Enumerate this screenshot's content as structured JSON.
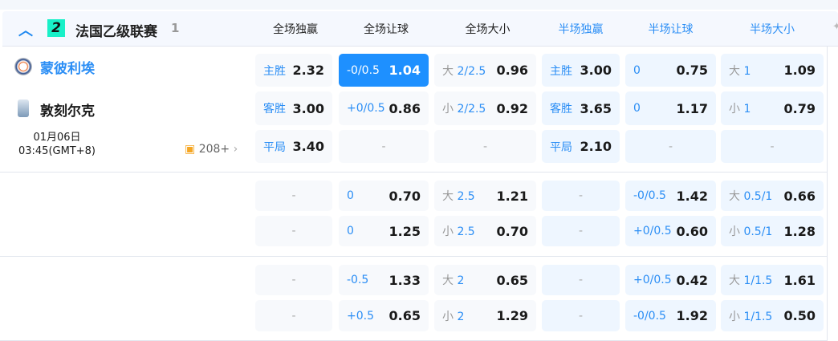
{
  "league": {
    "name": "法国乙级联赛",
    "count": "1",
    "logo_text": "2"
  },
  "columns": [
    "全场独赢",
    "全场让球",
    "全场大小",
    "半场独赢",
    "半场让球",
    "半场大小"
  ],
  "match": {
    "home": "蒙彼利埃",
    "away": "敦刻尔克",
    "date": "01月06日",
    "time": "03:45(GMT+8)",
    "more": "208+"
  },
  "rows": [
    [
      [
        "主胜",
        "",
        "2.32"
      ],
      [
        "-0/0.5",
        "",
        "1.04"
      ],
      [
        "大",
        "2/2.5",
        "0.96"
      ],
      [
        "主胜",
        "",
        "3.00"
      ],
      [
        "0",
        "",
        "0.75"
      ],
      [
        "大",
        "1",
        "1.09"
      ]
    ],
    [
      [
        "客胜",
        "",
        "3.00"
      ],
      [
        "+0/0.5",
        "",
        "0.86"
      ],
      [
        "小",
        "2/2.5",
        "0.92"
      ],
      [
        "客胜",
        "",
        "3.65"
      ],
      [
        "0",
        "",
        "1.17"
      ],
      [
        "小",
        "1",
        "0.79"
      ]
    ],
    [
      [
        "平局",
        "",
        "3.40"
      ],
      [
        "-"
      ],
      [
        "-"
      ],
      [
        "平局",
        "",
        "2.10"
      ],
      [
        "-"
      ],
      [
        "-"
      ]
    ],
    [
      [
        "-"
      ],
      [
        "0",
        "",
        "0.70"
      ],
      [
        "大",
        "2.5",
        "1.21"
      ],
      [
        "-"
      ],
      [
        "-0/0.5",
        "",
        "1.42"
      ],
      [
        "大",
        "0.5/1",
        "0.66"
      ]
    ],
    [
      [
        "-"
      ],
      [
        "0",
        "",
        "1.25"
      ],
      [
        "小",
        "2.5",
        "0.70"
      ],
      [
        "-"
      ],
      [
        "+0/0.5",
        "",
        "0.60"
      ],
      [
        "小",
        "0.5/1",
        "1.28"
      ]
    ],
    [
      [
        "-"
      ],
      [
        "-0.5",
        "",
        "1.33"
      ],
      [
        "大",
        "2",
        "0.65"
      ],
      [
        "-"
      ],
      [
        "+0/0.5",
        "",
        "0.42"
      ],
      [
        "大",
        "1/1.5",
        "1.61"
      ]
    ],
    [
      [
        "-"
      ],
      [
        "+0.5",
        "",
        "0.65"
      ],
      [
        "小",
        "2",
        "1.29"
      ],
      [
        "-"
      ],
      [
        "-0/0.5",
        "",
        "1.92"
      ],
      [
        "小",
        "1/1.5",
        "0.50"
      ]
    ]
  ],
  "selected": {
    "row": 0,
    "col": 1
  },
  "colors": {
    "accent": "#1e90ff",
    "league_logo": "#19f0c8"
  }
}
